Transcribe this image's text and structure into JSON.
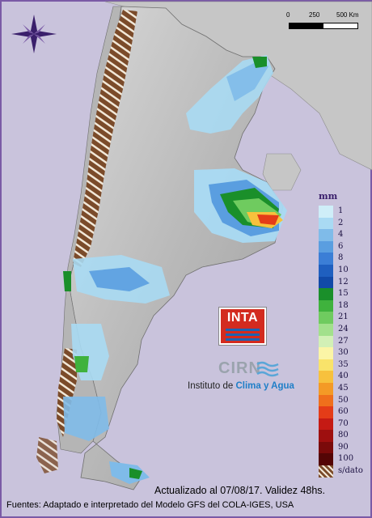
{
  "map": {
    "scale": {
      "ticks": [
        "0",
        "250",
        "500 Km"
      ]
    },
    "legend": {
      "unit": "mm",
      "items": [
        {
          "label": "1",
          "color": "#cfeef8"
        },
        {
          "label": "2",
          "color": "#a9daf3"
        },
        {
          "label": "4",
          "color": "#7fbbe9"
        },
        {
          "label": "6",
          "color": "#5a9ee0"
        },
        {
          "label": "8",
          "color": "#3b7ed6"
        },
        {
          "label": "10",
          "color": "#1f5fbf"
        },
        {
          "label": "12",
          "color": "#114aa8"
        },
        {
          "label": "15",
          "color": "#1a8f2a"
        },
        {
          "label": "18",
          "color": "#3fb23d"
        },
        {
          "label": "21",
          "color": "#6fcb5f"
        },
        {
          "label": "24",
          "color": "#a2e08c"
        },
        {
          "label": "27",
          "color": "#d2f0b6"
        },
        {
          "label": "30",
          "color": "#fbf5a6"
        },
        {
          "label": "35",
          "color": "#f9e36a"
        },
        {
          "label": "40",
          "color": "#f7c13d"
        },
        {
          "label": "45",
          "color": "#f49a26"
        },
        {
          "label": "50",
          "color": "#ef6f1c"
        },
        {
          "label": "60",
          "color": "#e43c18"
        },
        {
          "label": "70",
          "color": "#c51a14"
        },
        {
          "label": "80",
          "color": "#9e0f0f"
        },
        {
          "label": "90",
          "color": "#7a0a0a"
        },
        {
          "label": "100",
          "color": "#540505"
        }
      ],
      "nodata_label": "s/dato"
    },
    "logo_text": "INTA",
    "cirn_text": "CIRN",
    "institute": {
      "prefix": "Instituto de ",
      "highlight": "Clima y Agua"
    },
    "updated": "Actualizado al 07/08/17. Validez 48hs.",
    "source": "Fuentes: Adaptado e interpretado del Modelo GFS del COLA-IGES, USA"
  }
}
